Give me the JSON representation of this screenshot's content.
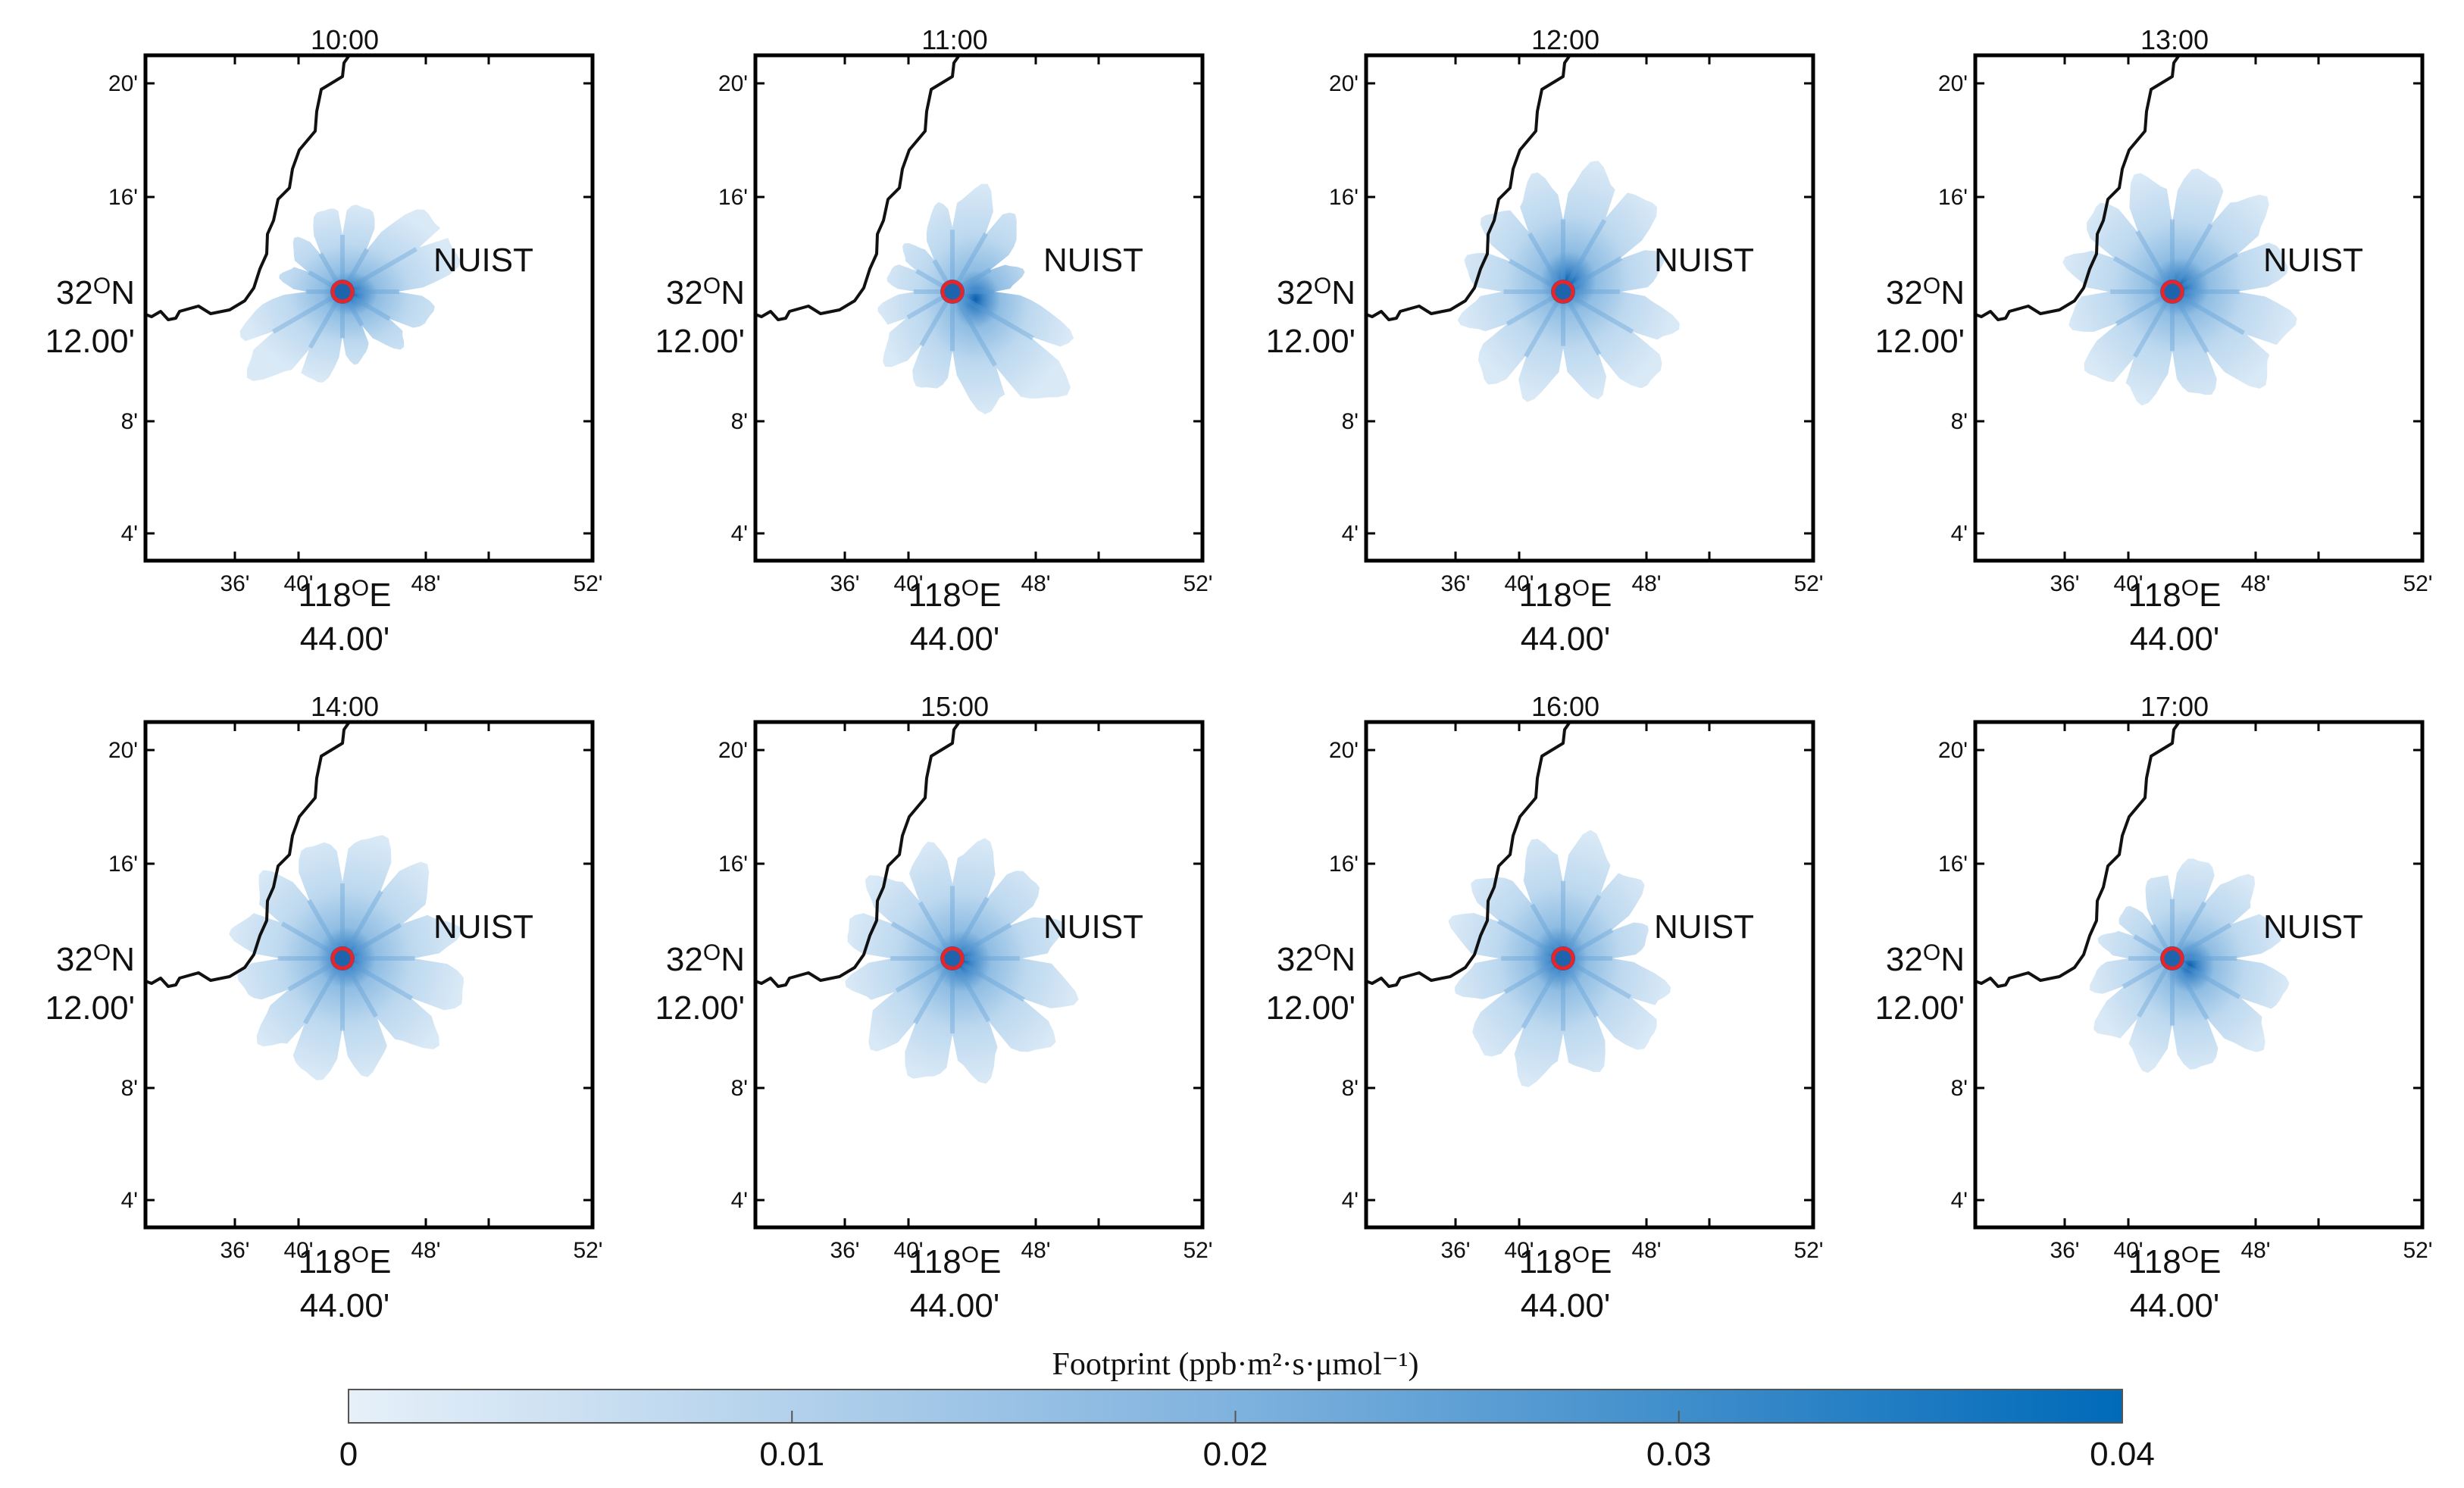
{
  "chart_data": {
    "type": "heatmap",
    "colorbar": {
      "title": "Footprint (ppb·m²·s·μmol⁻¹)",
      "min": 0,
      "max": 0.04,
      "ticks": [
        "0",
        "0.01",
        "0.02",
        "0.03",
        "0.04"
      ],
      "colors": [
        "#e6f0f9",
        "#006ab9"
      ]
    },
    "site_label": "NUIST",
    "site_value_center": 0.04,
    "x_tick_labels": [
      "36'",
      "40'",
      "48'",
      "52'"
    ],
    "x_center_label": [
      "118°E",
      "44.00'"
    ],
    "y_tick_labels": [
      "20'",
      "16'",
      "8'",
      "4'"
    ],
    "y_center_label": [
      "32°N",
      "12.00'"
    ],
    "panels": [
      {
        "time": "10:00",
        "lobes": [
          2.2,
          1.9,
          3.3,
          2.2,
          2.1,
          1.5,
          1.8,
          2.5,
          3.1,
          1.4,
          1.5,
          1.7
        ]
      },
      {
        "time": "11:00",
        "lobes": [
          2.4,
          2.6,
          1.7,
          1.6,
          3.6,
          3.3,
          2.3,
          2.4,
          2.0,
          1.5,
          1.6,
          1.4
        ]
      },
      {
        "time": "12:00",
        "lobes": [
          2.8,
          3.2,
          2.6,
          2.2,
          3.1,
          2.8,
          2.1,
          2.9,
          2.5,
          2.3,
          2.4,
          2.6
        ]
      },
      {
        "time": "13:00",
        "lobes": [
          2.8,
          3.0,
          2.9,
          2.6,
          3.2,
          2.7,
          2.3,
          2.9,
          2.5,
          2.4,
          2.6,
          2.7
        ]
      },
      {
        "time": "14:00",
        "lobes": [
          2.9,
          3.0,
          2.6,
          2.8,
          3.1,
          2.6,
          2.8,
          2.9,
          2.4,
          2.5,
          2.7,
          2.6
        ]
      },
      {
        "time": "15:00",
        "lobes": [
          2.8,
          2.7,
          2.6,
          2.6,
          3.2,
          2.8,
          2.9,
          2.9,
          2.5,
          2.4,
          2.7,
          2.5
        ]
      },
      {
        "time": "16:00",
        "lobes": [
          3.0,
          2.8,
          2.2,
          1.9,
          3.0,
          2.6,
          2.8,
          3.1,
          2.6,
          2.4,
          2.9,
          2.4
        ]
      },
      {
        "time": "17:00",
        "lobes": [
          2.3,
          2.5,
          2.6,
          2.5,
          3.0,
          2.7,
          2.6,
          2.6,
          2.2,
          1.7,
          1.7,
          1.5
        ]
      }
    ]
  }
}
